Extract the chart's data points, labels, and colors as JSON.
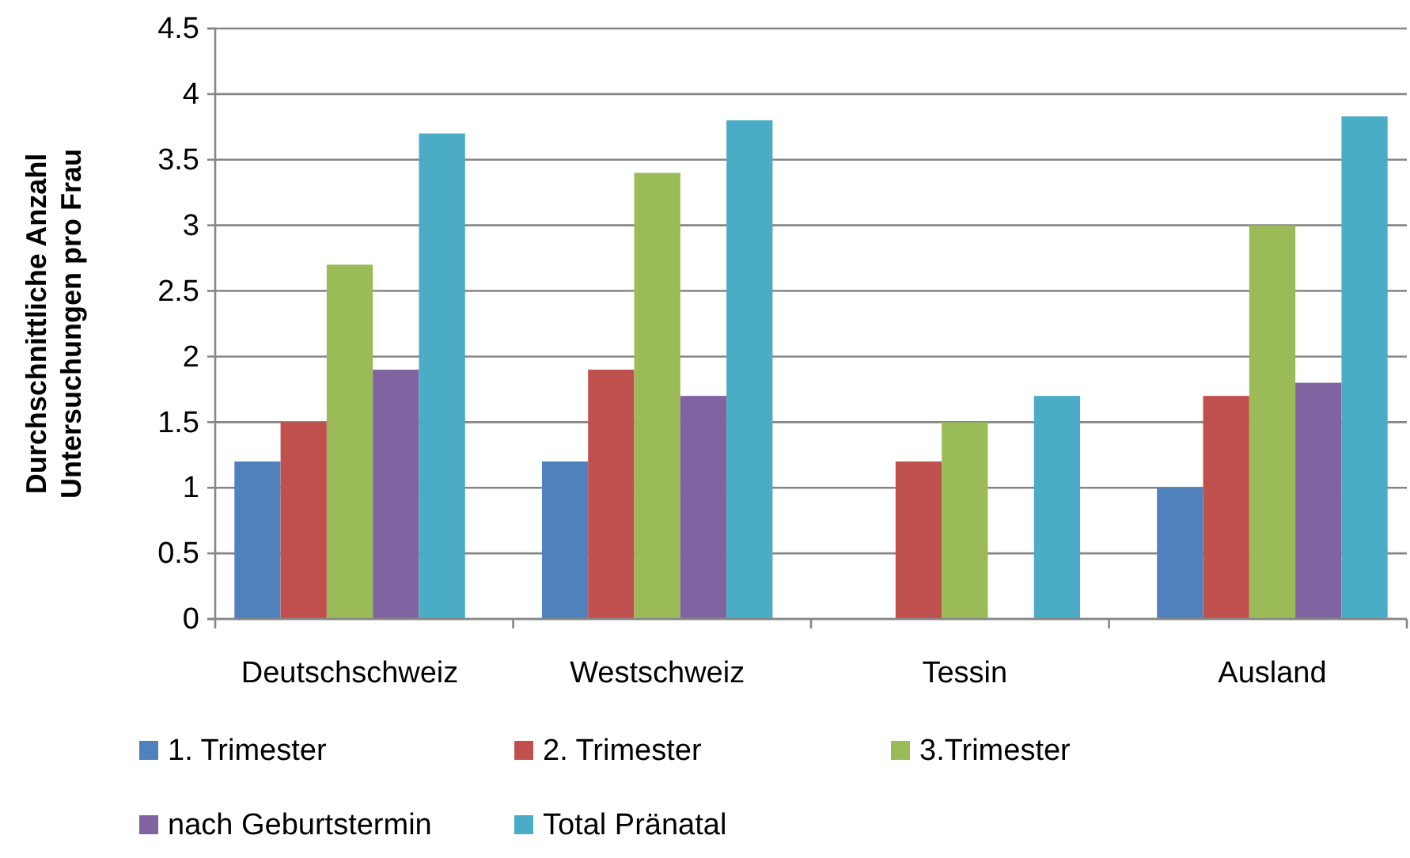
{
  "chart_data": {
    "type": "bar",
    "ylabel": "Durchschnittliche Anzahl\nUntersuchungen pro Frau",
    "categories": [
      "Deutschschweiz",
      "Westschweiz",
      "Tessin",
      "Ausland"
    ],
    "series": [
      {
        "name": "1. Trimester",
        "color": "#4f81bd",
        "values": [
          1.2,
          1.2,
          null,
          1.0
        ]
      },
      {
        "name": "2. Trimester",
        "color": "#c0504d",
        "values": [
          1.5,
          1.9,
          1.2,
          1.7
        ]
      },
      {
        "name": "3.Trimester",
        "color": "#9bbb59",
        "values": [
          2.7,
          3.4,
          1.5,
          3.0
        ]
      },
      {
        "name": "nach Geburtstermin",
        "color": "#8064a2",
        "values": [
          1.9,
          1.7,
          null,
          1.8
        ]
      },
      {
        "name": "Total Pränatal",
        "color": "#4bacc6",
        "values": [
          3.7,
          3.8,
          1.7,
          3.83
        ]
      }
    ],
    "ylim": [
      0,
      4.5
    ],
    "yticks": [
      0,
      0.5,
      1,
      1.5,
      2,
      2.5,
      3,
      3.5,
      4,
      4.5
    ],
    "grid": "y",
    "legend": "bottom"
  }
}
